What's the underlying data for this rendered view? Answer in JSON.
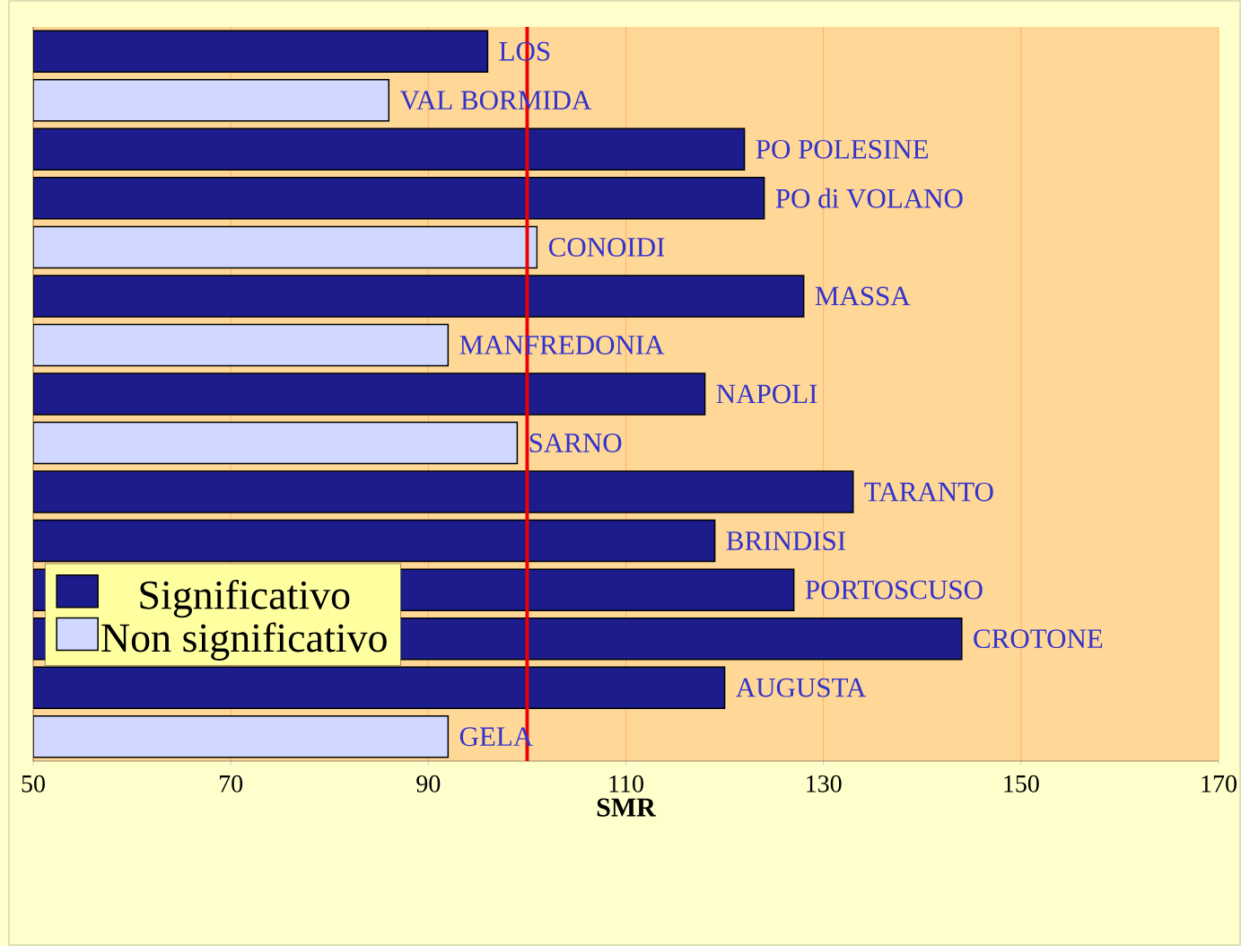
{
  "chart_data": {
    "type": "bar",
    "orientation": "horizontal",
    "xlabel": "SMR",
    "categories": [
      "LOS",
      "VAL BORMIDA",
      "PO POLESINE",
      "PO di VOLANO",
      "CONOIDI",
      "MASSA",
      "MANFREDONIA",
      "NAPOLI",
      "SARNO",
      "TARANTO",
      "BRINDISI",
      "PORTOSCUSO",
      "CROTONE",
      "AUGUSTA",
      "GELA"
    ],
    "series": [
      {
        "name": "Significativo",
        "color": "#1c1c8c",
        "values": [
          96,
          null,
          122,
          124,
          null,
          128,
          null,
          118,
          null,
          133,
          119,
          127,
          144,
          120,
          null
        ]
      },
      {
        "name": "Non significativo",
        "color": "#d0d8ff",
        "values": [
          null,
          86,
          null,
          null,
          101,
          null,
          92,
          null,
          99,
          null,
          null,
          null,
          null,
          null,
          92
        ]
      }
    ],
    "xlim": [
      50,
      170
    ],
    "xticks": [
      50,
      70,
      90,
      110,
      130,
      150,
      170
    ],
    "grid": "x",
    "legend": "bottom left",
    "ref_lines": [
      {
        "axis": "x",
        "value": 100,
        "color": "#ee0000"
      }
    ]
  }
}
